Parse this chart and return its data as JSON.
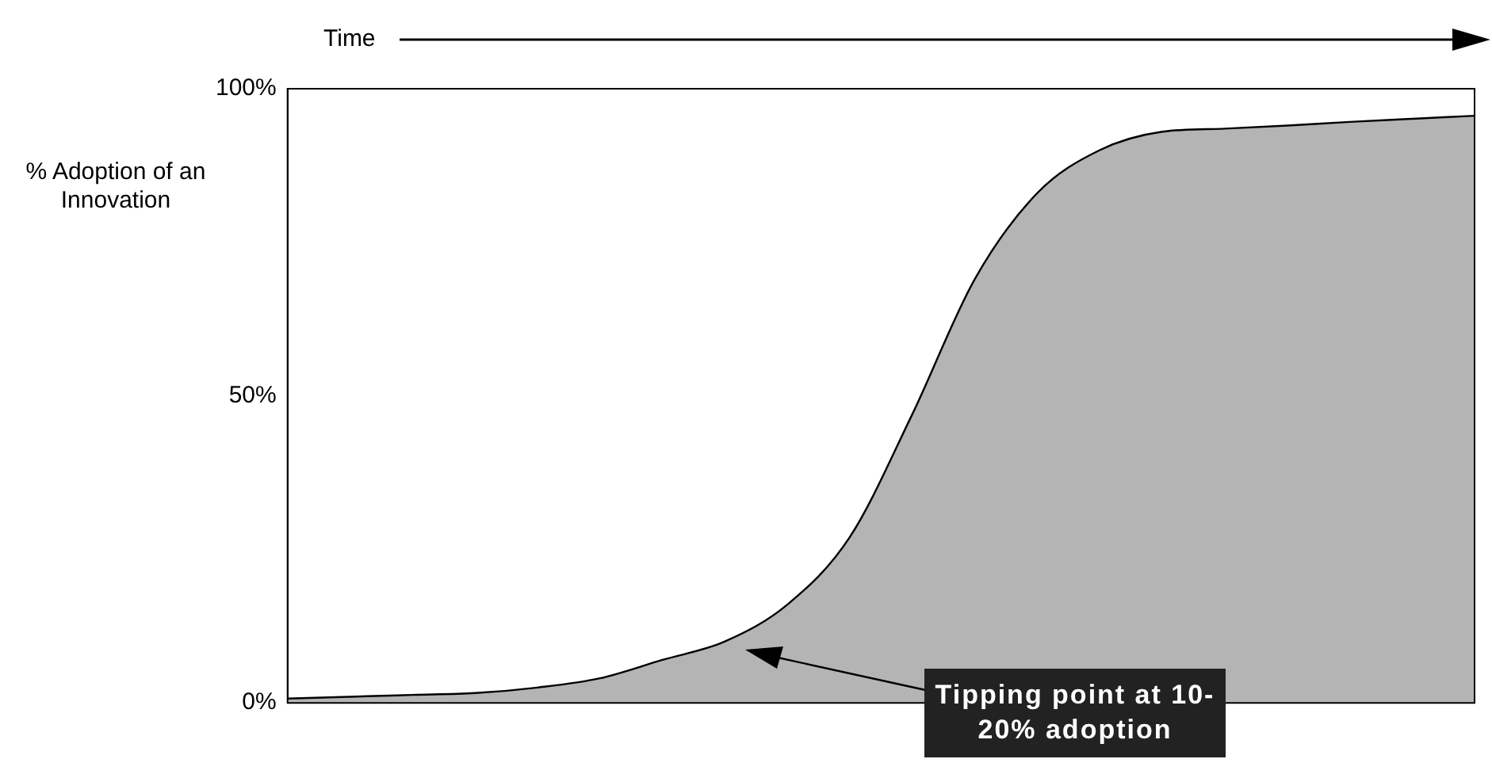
{
  "chart_data": {
    "type": "area",
    "xlabel": "Time",
    "ylabel": "% Adoption of an Innovation",
    "categories": [
      null,
      null,
      null,
      null,
      null,
      null,
      null,
      null,
      null,
      null,
      null,
      null,
      null,
      null,
      null,
      null,
      null,
      null,
      null,
      null
    ],
    "series": [
      {
        "color": "#b4b4b4",
        "values": [
          0.7,
          1.0,
          1.3,
          1.6,
          2.5,
          4,
          7,
          10,
          16,
          27,
          47,
          69,
          83,
          90,
          93,
          93.5,
          94,
          94.6,
          95.1,
          95.6
        ]
      }
    ],
    "ylim": [
      0,
      100
    ],
    "yticks": [
      {
        "value": 0,
        "label": "0%"
      },
      {
        "value": 50,
        "label": "50%"
      },
      {
        "value": 100,
        "label": "100%"
      }
    ],
    "grid": false,
    "legend": false,
    "marker": "none",
    "line_style": "solid",
    "annotations": [
      "Tipping point at 10-20% adoption"
    ]
  }
}
